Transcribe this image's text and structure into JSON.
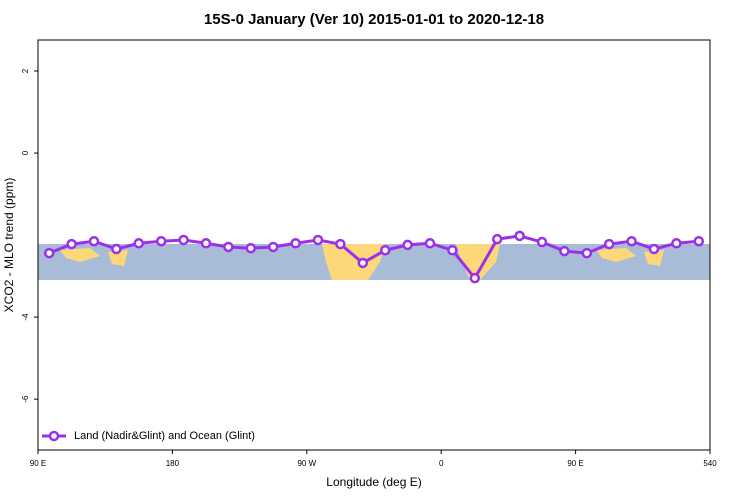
{
  "chart_data": {
    "type": "line",
    "title": "15S-0 January (Ver 10)   2015-01-01 to 2020-12-18",
    "x_label": "Longitude (deg E)",
    "y_label": "XCO2 - MLO trend (ppm)",
    "x": [
      97.5,
      112.5,
      127.5,
      142.5,
      157.5,
      172.5,
      187.5,
      202.5,
      217.5,
      232.5,
      247.5,
      262.5,
      277.5,
      292.5,
      307.5,
      322.5,
      337.5,
      352.5,
      367.5,
      382.5,
      397.5,
      412.5,
      427.5,
      442.5,
      457.5,
      472.5,
      487.5,
      502.5,
      517.5,
      532.5
    ],
    "series": [
      {
        "name": "Land (Nadir&Glint) and Ocean (Glint)",
        "color": "#9b30e8",
        "values": [
          -2.44,
          -2.22,
          -2.15,
          -2.34,
          -2.2,
          -2.15,
          -2.12,
          -2.2,
          -2.29,
          -2.32,
          -2.29,
          -2.2,
          -2.12,
          -2.22,
          -2.68,
          -2.37,
          -2.24,
          -2.2,
          -2.37,
          -3.05,
          -2.1,
          -2.02,
          -2.17,
          -2.39,
          -2.44,
          -2.22,
          -2.15,
          -2.34,
          -2.2,
          -2.15
        ]
      }
    ],
    "xlim": [
      90,
      540
    ],
    "xticks": [
      {
        "value": 90,
        "label": "90 E"
      },
      180,
      {
        "value": 270,
        "label": "90 W"
      },
      {
        "value": 360,
        "label": "0"
      },
      {
        "value": 450,
        "label": "90 E"
      },
      540
    ],
    "ylim": [
      -7.24,
      2.756
    ],
    "yticks": [
      -6,
      -4,
      0,
      2
    ],
    "legend": "bottom-left"
  }
}
